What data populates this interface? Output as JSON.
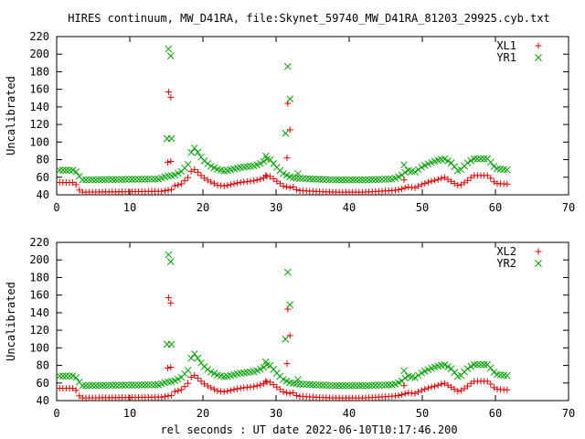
{
  "title": "HIRES continuum, MW_D41RA, file:Skynet_59740_MW_D41RA_81203_29925.cyb.txt",
  "xlabel": "rel seconds : UT date 2022-06-10T10:17:46.200",
  "colors": {
    "red": "#e00000",
    "green": "#00a000"
  },
  "chart_data": [
    {
      "type": "scatter",
      "ylabel": "Uncalibrated",
      "xlim": [
        0,
        70
      ],
      "ylim": [
        40,
        220
      ],
      "xticks": [
        "0",
        "10",
        "20",
        "30",
        "40",
        "50",
        "60",
        "70"
      ],
      "yticks": [
        "40",
        "60",
        "80",
        "100",
        "120",
        "140",
        "160",
        "180",
        "200",
        "220"
      ],
      "legend_position": "top-right",
      "series": [
        {
          "name": "XL1",
          "marker": "plus",
          "color": "#e00000",
          "baseline": [
            [
              0,
              54
            ],
            [
              2.5,
              54
            ],
            [
              3,
              46
            ],
            [
              3.5,
              43
            ],
            [
              14.5,
              44
            ],
            [
              15,
              45
            ],
            [
              15.8,
              46
            ],
            [
              16,
              50
            ],
            [
              17,
              52
            ],
            [
              18,
              60
            ],
            [
              18.6,
              70
            ],
            [
              19,
              68
            ],
            [
              20,
              60
            ],
            [
              21,
              55
            ],
            [
              22,
              51
            ],
            [
              23,
              50
            ],
            [
              24,
              52
            ],
            [
              25,
              54
            ],
            [
              26,
              55
            ],
            [
              27,
              56
            ],
            [
              28,
              58
            ],
            [
              29,
              62
            ],
            [
              30,
              56
            ],
            [
              31,
              50
            ],
            [
              32,
              48
            ],
            [
              32.2,
              51
            ],
            [
              32.5,
              47
            ],
            [
              33,
              45
            ],
            [
              35,
              44
            ],
            [
              38,
              43
            ],
            [
              42,
              43
            ],
            [
              46,
              45
            ],
            [
              47,
              46
            ],
            [
              48,
              49
            ],
            [
              49,
              48
            ],
            [
              50,
              52
            ],
            [
              51,
              55
            ],
            [
              52,
              57
            ],
            [
              53,
              60
            ],
            [
              54,
              55
            ],
            [
              55,
              50
            ],
            [
              56,
              55
            ],
            [
              57,
              62
            ],
            [
              59,
              62
            ],
            [
              60,
              53
            ],
            [
              62,
              52
            ]
          ],
          "outliers": [
            [
              15.2,
              77
            ],
            [
              15.6,
              78
            ],
            [
              15.3,
              157
            ],
            [
              15.6,
              151
            ],
            [
              31.5,
              82
            ],
            [
              31.6,
              144
            ],
            [
              31.9,
              114
            ],
            [
              28.6,
              62
            ],
            [
              47.5,
              57
            ]
          ]
        },
        {
          "name": "YR1",
          "marker": "cross",
          "color": "#00a000",
          "baseline": [
            [
              0,
              68
            ],
            [
              2.5,
              68
            ],
            [
              3,
              62
            ],
            [
              3.5,
              57
            ],
            [
              14,
              58
            ],
            [
              15,
              61
            ],
            [
              16,
              62
            ],
            [
              17,
              66
            ],
            [
              18,
              75
            ],
            [
              18.6,
              95
            ],
            [
              19,
              92
            ],
            [
              20,
              80
            ],
            [
              21,
              73
            ],
            [
              22,
              69
            ],
            [
              23,
              67
            ],
            [
              24,
              69
            ],
            [
              25,
              71
            ],
            [
              26,
              72
            ],
            [
              27,
              73
            ],
            [
              28,
              76
            ],
            [
              29,
              82
            ],
            [
              30,
              72
            ],
            [
              31,
              64
            ],
            [
              32,
              60
            ],
            [
              33,
              59
            ],
            [
              35,
              58
            ],
            [
              38,
              57
            ],
            [
              42,
              57
            ],
            [
              46,
              58
            ],
            [
              47,
              61
            ],
            [
              48,
              68
            ],
            [
              49,
              66
            ],
            [
              50,
              72
            ],
            [
              51,
              76
            ],
            [
              52,
              79
            ],
            [
              53,
              81
            ],
            [
              54,
              76
            ],
            [
              55,
              66
            ],
            [
              56,
              75
            ],
            [
              57,
              81
            ],
            [
              59,
              81
            ],
            [
              60,
              70
            ],
            [
              62,
              68
            ]
          ],
          "outliers": [
            [
              15.1,
              104
            ],
            [
              15.7,
              104
            ],
            [
              15.3,
              206
            ],
            [
              15.6,
              198
            ],
            [
              31.3,
              110
            ],
            [
              31.6,
              186
            ],
            [
              31.9,
              149
            ],
            [
              28.6,
              84
            ],
            [
              47.5,
              74
            ],
            [
              33,
              64
            ]
          ]
        }
      ]
    },
    {
      "type": "scatter",
      "ylabel": "Uncalibrated",
      "xlim": [
        0,
        70
      ],
      "ylim": [
        40,
        220
      ],
      "xticks": [
        "0",
        "10",
        "20",
        "30",
        "40",
        "50",
        "60",
        "70"
      ],
      "yticks": [
        "40",
        "60",
        "80",
        "100",
        "120",
        "140",
        "160",
        "180",
        "200",
        "220"
      ],
      "legend_position": "top-right",
      "series": [
        {
          "name": "XL2",
          "marker": "plus",
          "color": "#e00000",
          "baseline": [
            [
              0,
              54
            ],
            [
              2.5,
              54
            ],
            [
              3,
              46
            ],
            [
              3.5,
              43
            ],
            [
              14.5,
              44
            ],
            [
              15,
              45
            ],
            [
              15.8,
              46
            ],
            [
              16,
              50
            ],
            [
              17,
              52
            ],
            [
              18,
              60
            ],
            [
              18.6,
              70
            ],
            [
              19,
              68
            ],
            [
              20,
              60
            ],
            [
              21,
              55
            ],
            [
              22,
              51
            ],
            [
              23,
              50
            ],
            [
              24,
              52
            ],
            [
              25,
              54
            ],
            [
              26,
              55
            ],
            [
              27,
              56
            ],
            [
              28,
              58
            ],
            [
              29,
              62
            ],
            [
              30,
              56
            ],
            [
              31,
              50
            ],
            [
              32,
              48
            ],
            [
              32.2,
              51
            ],
            [
              32.5,
              47
            ],
            [
              33,
              45
            ],
            [
              35,
              44
            ],
            [
              38,
              43
            ],
            [
              42,
              43
            ],
            [
              46,
              45
            ],
            [
              47,
              46
            ],
            [
              48,
              49
            ],
            [
              49,
              48
            ],
            [
              50,
              52
            ],
            [
              51,
              55
            ],
            [
              52,
              57
            ],
            [
              53,
              60
            ],
            [
              54,
              55
            ],
            [
              55,
              50
            ],
            [
              56,
              55
            ],
            [
              57,
              62
            ],
            [
              59,
              62
            ],
            [
              60,
              53
            ],
            [
              62,
              52
            ]
          ],
          "outliers": [
            [
              15.2,
              77
            ],
            [
              15.6,
              78
            ],
            [
              15.3,
              157
            ],
            [
              15.6,
              151
            ],
            [
              31.5,
              82
            ],
            [
              31.6,
              144
            ],
            [
              31.9,
              114
            ],
            [
              28.6,
              62
            ],
            [
              47.5,
              57
            ]
          ]
        },
        {
          "name": "YR2",
          "marker": "cross",
          "color": "#00a000",
          "baseline": [
            [
              0,
              68
            ],
            [
              2.5,
              68
            ],
            [
              3,
              62
            ],
            [
              3.5,
              57
            ],
            [
              14,
              58
            ],
            [
              15,
              61
            ],
            [
              16,
              62
            ],
            [
              17,
              66
            ],
            [
              18,
              75
            ],
            [
              18.6,
              95
            ],
            [
              19,
              92
            ],
            [
              20,
              80
            ],
            [
              21,
              73
            ],
            [
              22,
              69
            ],
            [
              23,
              67
            ],
            [
              24,
              69
            ],
            [
              25,
              71
            ],
            [
              26,
              72
            ],
            [
              27,
              73
            ],
            [
              28,
              76
            ],
            [
              29,
              82
            ],
            [
              30,
              72
            ],
            [
              31,
              64
            ],
            [
              32,
              60
            ],
            [
              33,
              59
            ],
            [
              35,
              58
            ],
            [
              38,
              57
            ],
            [
              42,
              57
            ],
            [
              46,
              58
            ],
            [
              47,
              61
            ],
            [
              48,
              68
            ],
            [
              49,
              66
            ],
            [
              50,
              72
            ],
            [
              51,
              76
            ],
            [
              52,
              79
            ],
            [
              53,
              81
            ],
            [
              54,
              76
            ],
            [
              55,
              66
            ],
            [
              56,
              75
            ],
            [
              57,
              81
            ],
            [
              59,
              81
            ],
            [
              60,
              70
            ],
            [
              62,
              68
            ]
          ],
          "outliers": [
            [
              15.1,
              104
            ],
            [
              15.7,
              104
            ],
            [
              15.3,
              206
            ],
            [
              15.6,
              198
            ],
            [
              31.3,
              110
            ],
            [
              31.6,
              186
            ],
            [
              31.9,
              149
            ],
            [
              28.6,
              84
            ],
            [
              47.5,
              74
            ],
            [
              33,
              64
            ]
          ]
        }
      ]
    }
  ]
}
